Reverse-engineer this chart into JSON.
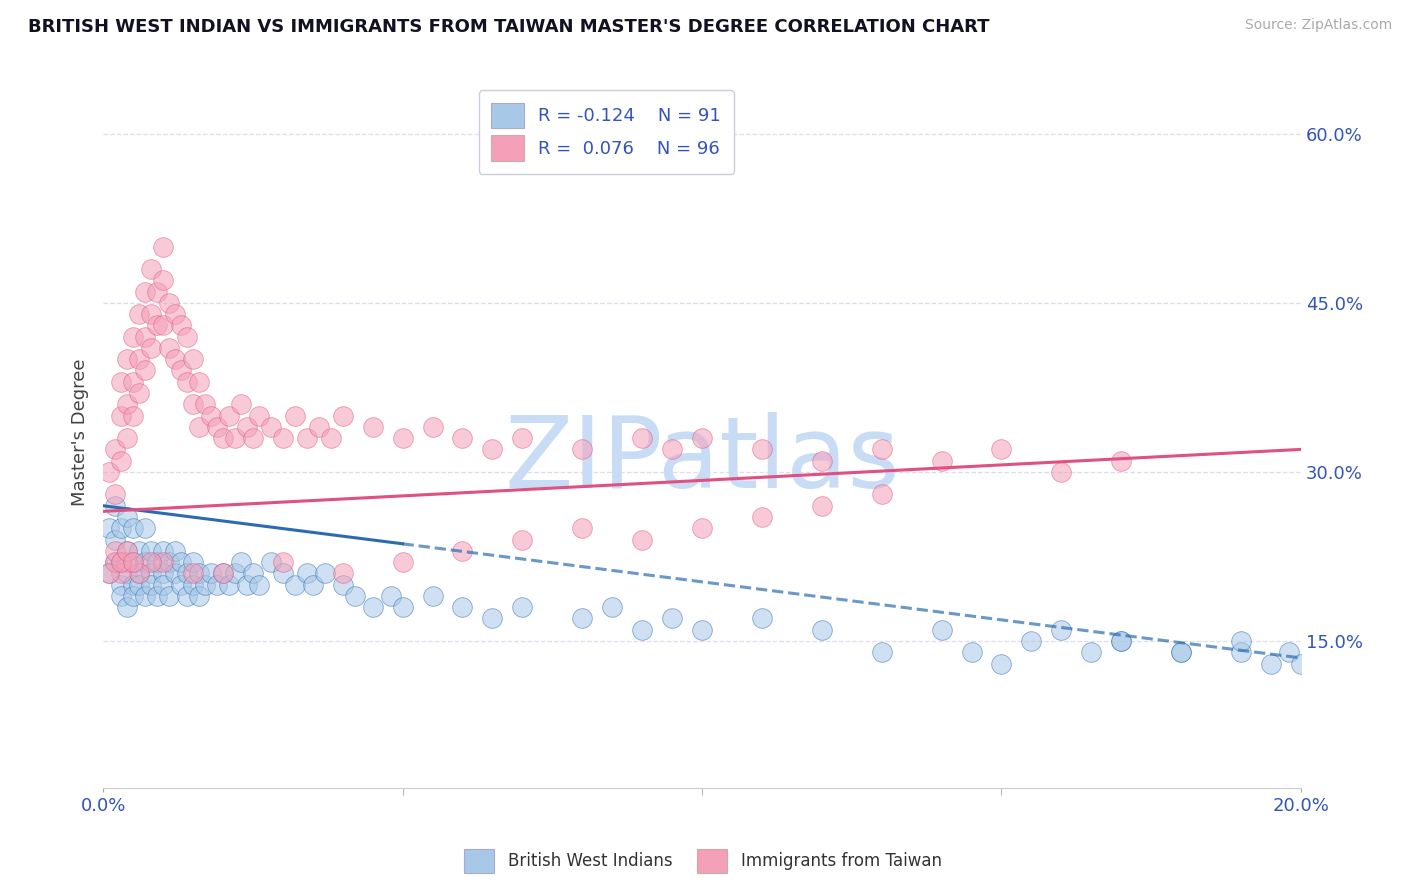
{
  "title": "BRITISH WEST INDIAN VS IMMIGRANTS FROM TAIWAN MASTER'S DEGREE CORRELATION CHART",
  "source": "Source: ZipAtlas.com",
  "ylabel": "Master's Degree",
  "y_ticks": [
    0.15,
    0.3,
    0.45,
    0.6
  ],
  "y_tick_labels": [
    "15.0%",
    "30.0%",
    "45.0%",
    "60.0%"
  ],
  "x_min": 0.0,
  "x_max": 0.2,
  "y_min": 0.02,
  "y_max": 0.65,
  "x_ticks": [
    0.0,
    0.2
  ],
  "x_tick_labels": [
    "0.0%",
    "20.0%"
  ],
  "color_blue": "#A8C8E8",
  "color_pink": "#F4A0B8",
  "line_color_blue": "#2B6CB0",
  "line_color_pink": "#E05080",
  "watermark": "ZIPatlas",
  "watermark_color": "#C8DDF5",
  "title_color": "#111122",
  "axis_label_color": "#3355bb",
  "background_color": "#ffffff",
  "grid_color": "#ddddee",
  "blue_scatter_x": [
    0.001,
    0.001,
    0.002,
    0.002,
    0.002,
    0.003,
    0.003,
    0.003,
    0.003,
    0.004,
    0.004,
    0.004,
    0.004,
    0.005,
    0.005,
    0.005,
    0.005,
    0.006,
    0.006,
    0.006,
    0.007,
    0.007,
    0.007,
    0.008,
    0.008,
    0.008,
    0.009,
    0.009,
    0.01,
    0.01,
    0.01,
    0.011,
    0.011,
    0.012,
    0.012,
    0.013,
    0.013,
    0.014,
    0.014,
    0.015,
    0.015,
    0.016,
    0.016,
    0.017,
    0.018,
    0.019,
    0.02,
    0.021,
    0.022,
    0.023,
    0.024,
    0.025,
    0.026,
    0.028,
    0.03,
    0.032,
    0.034,
    0.035,
    0.037,
    0.04,
    0.042,
    0.045,
    0.048,
    0.05,
    0.055,
    0.06,
    0.065,
    0.07,
    0.08,
    0.085,
    0.09,
    0.095,
    0.1,
    0.11,
    0.12,
    0.13,
    0.14,
    0.15,
    0.16,
    0.17,
    0.18,
    0.19,
    0.195,
    0.198,
    0.2,
    0.19,
    0.18,
    0.17,
    0.165,
    0.155,
    0.145
  ],
  "blue_scatter_y": [
    0.21,
    0.25,
    0.22,
    0.27,
    0.24,
    0.2,
    0.22,
    0.25,
    0.19,
    0.21,
    0.23,
    0.26,
    0.18,
    0.2,
    0.22,
    0.25,
    0.19,
    0.21,
    0.23,
    0.2,
    0.22,
    0.25,
    0.19,
    0.21,
    0.23,
    0.2,
    0.22,
    0.19,
    0.21,
    0.23,
    0.2,
    0.22,
    0.19,
    0.21,
    0.23,
    0.2,
    0.22,
    0.19,
    0.21,
    0.22,
    0.2,
    0.21,
    0.19,
    0.2,
    0.21,
    0.2,
    0.21,
    0.2,
    0.21,
    0.22,
    0.2,
    0.21,
    0.2,
    0.22,
    0.21,
    0.2,
    0.21,
    0.2,
    0.21,
    0.2,
    0.19,
    0.18,
    0.19,
    0.18,
    0.19,
    0.18,
    0.17,
    0.18,
    0.17,
    0.18,
    0.16,
    0.17,
    0.16,
    0.17,
    0.16,
    0.14,
    0.16,
    0.13,
    0.16,
    0.15,
    0.14,
    0.14,
    0.13,
    0.14,
    0.13,
    0.15,
    0.14,
    0.15,
    0.14,
    0.15,
    0.14
  ],
  "pink_scatter_x": [
    0.001,
    0.002,
    0.002,
    0.003,
    0.003,
    0.003,
    0.004,
    0.004,
    0.004,
    0.005,
    0.005,
    0.005,
    0.006,
    0.006,
    0.006,
    0.007,
    0.007,
    0.007,
    0.008,
    0.008,
    0.008,
    0.009,
    0.009,
    0.01,
    0.01,
    0.01,
    0.011,
    0.011,
    0.012,
    0.012,
    0.013,
    0.013,
    0.014,
    0.014,
    0.015,
    0.015,
    0.016,
    0.016,
    0.017,
    0.018,
    0.019,
    0.02,
    0.021,
    0.022,
    0.023,
    0.024,
    0.025,
    0.026,
    0.028,
    0.03,
    0.032,
    0.034,
    0.036,
    0.038,
    0.04,
    0.045,
    0.05,
    0.055,
    0.06,
    0.065,
    0.07,
    0.08,
    0.09,
    0.095,
    0.1,
    0.11,
    0.12,
    0.13,
    0.14,
    0.15,
    0.16,
    0.17,
    0.13,
    0.12,
    0.11,
    0.1,
    0.09,
    0.08,
    0.07,
    0.06,
    0.05,
    0.04,
    0.03,
    0.02,
    0.01,
    0.015,
    0.008,
    0.006,
    0.004,
    0.003,
    0.002,
    0.001,
    0.002,
    0.003,
    0.004,
    0.005
  ],
  "pink_scatter_y": [
    0.3,
    0.32,
    0.28,
    0.35,
    0.38,
    0.31,
    0.36,
    0.4,
    0.33,
    0.38,
    0.42,
    0.35,
    0.4,
    0.44,
    0.37,
    0.42,
    0.46,
    0.39,
    0.44,
    0.48,
    0.41,
    0.46,
    0.43,
    0.47,
    0.5,
    0.43,
    0.45,
    0.41,
    0.44,
    0.4,
    0.43,
    0.39,
    0.42,
    0.38,
    0.4,
    0.36,
    0.38,
    0.34,
    0.36,
    0.35,
    0.34,
    0.33,
    0.35,
    0.33,
    0.36,
    0.34,
    0.33,
    0.35,
    0.34,
    0.33,
    0.35,
    0.33,
    0.34,
    0.33,
    0.35,
    0.34,
    0.33,
    0.34,
    0.33,
    0.32,
    0.33,
    0.32,
    0.33,
    0.32,
    0.33,
    0.32,
    0.31,
    0.32,
    0.31,
    0.32,
    0.3,
    0.31,
    0.28,
    0.27,
    0.26,
    0.25,
    0.24,
    0.25,
    0.24,
    0.23,
    0.22,
    0.21,
    0.22,
    0.21,
    0.22,
    0.21,
    0.22,
    0.21,
    0.22,
    0.21,
    0.22,
    0.21,
    0.23,
    0.22,
    0.23,
    0.22
  ]
}
